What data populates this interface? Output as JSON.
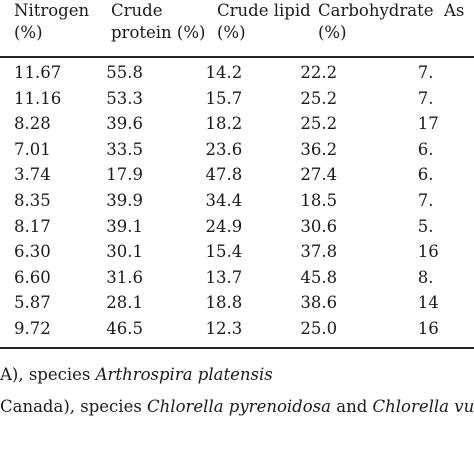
{
  "table": {
    "headers": [
      {
        "line1": "Nitrogen",
        "line2": "(%)"
      },
      {
        "line1": "Crude",
        "line2": "protein (%)"
      },
      {
        "line1": "Crude lipid",
        "line2": "(%)"
      },
      {
        "line1": "Carbohydrate",
        "line2": "(%)"
      },
      {
        "line1": "As",
        "line2": ""
      }
    ],
    "rows": [
      [
        "11.67",
        "55.8",
        "14.2",
        "22.2",
        "7."
      ],
      [
        "11.16",
        "53.3",
        "15.7",
        "25.2",
        "7."
      ],
      [
        "8.28",
        "39.6",
        "18.2",
        "25.2",
        "17"
      ],
      [
        "7.01",
        "33.5",
        "23.6",
        "36.2",
        "6."
      ],
      [
        "3.74",
        "17.9",
        "47.8",
        "27.4",
        "6."
      ],
      [
        "8.35",
        "39.9",
        "34.4",
        "18.5",
        "7."
      ],
      [
        "8.17",
        "39.1",
        "24.9",
        "30.6",
        "5."
      ],
      [
        "6.30",
        "30.1",
        "15.4",
        "37.8",
        "16"
      ],
      [
        "6.60",
        "31.6",
        "13.7",
        "45.8",
        "8."
      ],
      [
        "5.87",
        "28.1",
        "18.8",
        "38.6",
        "14"
      ],
      [
        "9.72",
        "46.5",
        "12.3",
        "25.0",
        "16"
      ]
    ]
  },
  "footnotes": [
    {
      "prefix": "A), species ",
      "italic": "Arthrospira platensis",
      "mid": "",
      "italic2": ""
    },
    {
      "prefix": "Canada), species ",
      "italic": "Chlorella pyrenoidosa",
      "mid": " and ",
      "italic2": "Chlorella vulga"
    }
  ]
}
